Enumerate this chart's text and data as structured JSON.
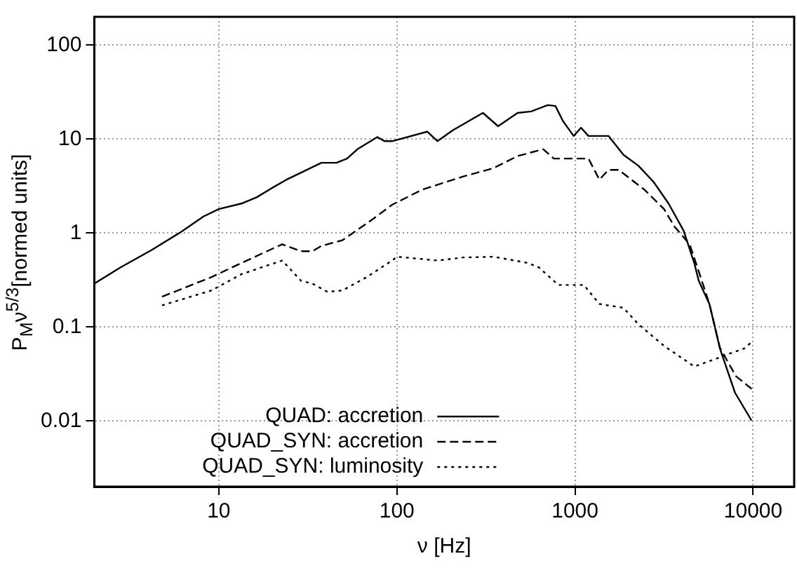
{
  "chart_data": {
    "type": "line",
    "xlabel": "ν [Hz]",
    "ylabel": "P$_{M}$ν$^{5/3}$[normed units]",
    "log": "xy",
    "xlim": [
      2,
      17000
    ],
    "xticks": [
      10,
      100,
      1000,
      10000
    ],
    "ylim": [
      0.002,
      200
    ],
    "yticks": [
      0.01,
      0.1,
      1,
      10,
      100
    ],
    "grid": true,
    "legend": "bottom",
    "marker": "none",
    "series": [
      {
        "name": "QUAD: accretion",
        "color": "#000000",
        "line_style": "solid",
        "x": [
          2,
          2.8,
          4.2,
          6.1,
          8.2,
          10,
          13.4,
          16.3,
          19.8,
          24,
          29,
          37.7,
          45.8,
          52.5,
          60,
          77.6,
          85.5,
          94,
          148,
          169,
          206,
          304,
          370,
          476,
          568,
          703,
          776,
          855,
          982,
          1080,
          1190,
          1540,
          1870,
          2270,
          2760,
          3350,
          4070,
          4670,
          4950,
          5680,
          6510,
          7910,
          9800
        ],
        "values": [
          0.29,
          0.43,
          0.66,
          1.02,
          1.5,
          1.8,
          2.06,
          2.4,
          3.0,
          3.7,
          4.4,
          5.6,
          5.6,
          6.2,
          7.8,
          10.5,
          9.5,
          9.5,
          12,
          9.5,
          12.4,
          19,
          13.7,
          19,
          19.7,
          23,
          22.5,
          15.6,
          10.8,
          13.2,
          10.8,
          10.8,
          6.8,
          5.2,
          3.5,
          2.06,
          1.06,
          0.48,
          0.31,
          0.176,
          0.059,
          0.02,
          0.0101
        ]
      },
      {
        "name": "QUAD_SYN: accretion",
        "color": "#000000",
        "line_style": "dashed",
        "x": [
          4.8,
          9.1,
          13.4,
          22.7,
          29,
          33.5,
          37.7,
          49.5,
          73,
          94,
          139,
          236,
          348,
          476,
          664,
          760,
          982,
          1190,
          1370,
          1540,
          1760,
          2450,
          3160,
          3620,
          4400,
          4950,
          5680,
          6510,
          8000,
          9800
        ],
        "values": [
          0.21,
          0.34,
          0.48,
          0.76,
          0.64,
          0.64,
          0.73,
          0.84,
          1.4,
          2.0,
          2.9,
          4.0,
          4.9,
          6.6,
          7.8,
          6.2,
          6.2,
          6.2,
          3.7,
          4.7,
          4.7,
          2.9,
          1.8,
          1.17,
          0.76,
          0.39,
          0.176,
          0.06,
          0.03,
          0.022
        ]
      },
      {
        "name": "QUAD_SYN: luminosity",
        "color": "#000000",
        "line_style": "dotted",
        "x": [
          4.8,
          9.1,
          13.4,
          22.7,
          29,
          33.5,
          40.7,
          49.5,
          67.7,
          94,
          100,
          169,
          236,
          348,
          546,
          627,
          807,
          982,
          1120,
          1370,
          1870,
          2270,
          3160,
          4670,
          6020,
          6910,
          8890,
          9800
        ],
        "values": [
          0.17,
          0.245,
          0.365,
          0.51,
          0.31,
          0.29,
          0.237,
          0.245,
          0.34,
          0.51,
          0.56,
          0.51,
          0.55,
          0.56,
          0.48,
          0.43,
          0.28,
          0.28,
          0.28,
          0.176,
          0.16,
          0.107,
          0.063,
          0.038,
          0.045,
          0.05,
          0.059,
          0.069
        ]
      }
    ]
  }
}
